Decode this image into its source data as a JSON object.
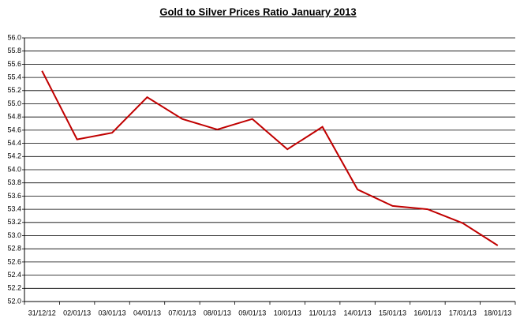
{
  "chart_data": {
    "type": "line",
    "title": "Gold to Silver Prices Ratio January 2013",
    "categories": [
      "31/12/12",
      "02/01/13",
      "03/01/13",
      "04/01/13",
      "07/01/13",
      "08/01/13",
      "09/01/13",
      "10/01/13",
      "11/01/13",
      "14/01/13",
      "15/01/13",
      "16/01/13",
      "17/01/13",
      "18/01/13"
    ],
    "values": [
      55.5,
      54.46,
      54.56,
      55.1,
      54.77,
      54.61,
      54.77,
      54.31,
      54.65,
      53.7,
      53.45,
      53.4,
      53.19,
      52.85
    ],
    "color": "#c00000",
    "ylim": [
      52,
      56
    ],
    "yticks": [
      {
        "value": 52,
        "label": "52.0"
      },
      52.2,
      52.4,
      52.6,
      52.8,
      {
        "value": 53,
        "label": "53.0"
      },
      53.2,
      53.4,
      53.6,
      53.8,
      {
        "value": 54,
        "label": "54.0"
      },
      54.2,
      54.4,
      54.6,
      54.8,
      {
        "value": 55,
        "label": "55.0"
      },
      55.2,
      55.4,
      55.6,
      55.8,
      {
        "value": 56,
        "label": "56.0"
      }
    ],
    "grid": true
  }
}
